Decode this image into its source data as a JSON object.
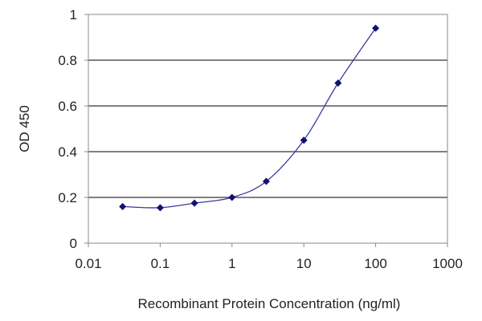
{
  "chart_data": {
    "type": "scatter",
    "title": "",
    "xlabel": "Recombinant Protein Concentration (ng/ml)",
    "ylabel": "OD 450",
    "x_scale": "log",
    "xlim": [
      0.01,
      1000
    ],
    "ylim": [
      0,
      1
    ],
    "x_ticks": [
      0.01,
      0.1,
      1,
      10,
      100,
      1000
    ],
    "x_tick_labels": [
      "0.01",
      "0.1",
      "1",
      "10",
      "100",
      "1000"
    ],
    "y_ticks": [
      0,
      0.2,
      0.4,
      0.6,
      0.8,
      1
    ],
    "y_tick_labels": [
      "0",
      "0.2",
      "0.4",
      "0.6",
      "0.8",
      "1"
    ],
    "grid": "horizontal",
    "legend": "none",
    "fit_curve": "sigmoidal",
    "series": [
      {
        "x": [
          0.03,
          0.1,
          0.3,
          1,
          3,
          10,
          30,
          100
        ],
        "y": [
          0.16,
          0.155,
          0.175,
          0.2,
          0.27,
          0.45,
          0.7,
          0.94
        ]
      }
    ],
    "colors": {
      "marker": "#101070",
      "curve": "#3a3aa0",
      "grid": "#000000",
      "frame": "#8a8a8a"
    }
  }
}
